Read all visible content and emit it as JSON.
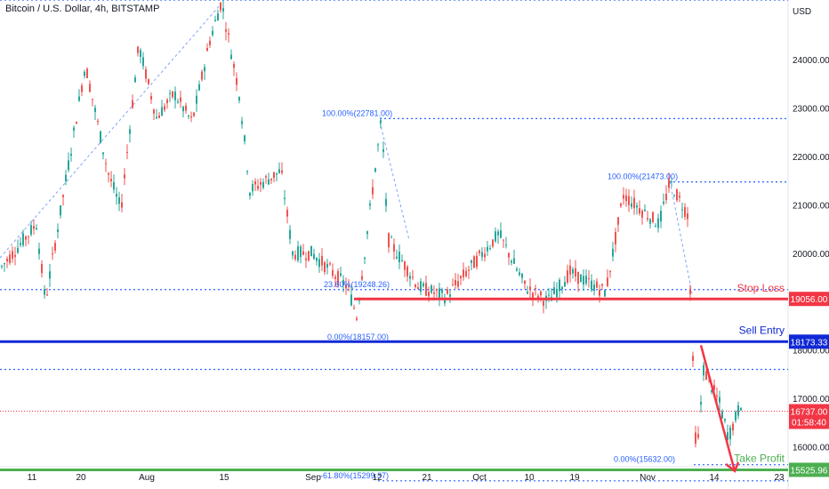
{
  "header": {
    "title": "Bitcoin / U.S. Dollar, 4h, BITSTAMP",
    "currency": "USD"
  },
  "chart_data": {
    "type": "candlestick",
    "title": "Bitcoin / U.S. Dollar, 4h, BITSTAMP",
    "ylabel": "USD",
    "ylim": [
      15130,
      25230
    ],
    "y_ticks": [
      16000,
      17000,
      18000,
      19000,
      20000,
      21000,
      22000,
      23000,
      24000
    ],
    "x_ticks": [
      "11",
      "20",
      "Aug",
      "15",
      "Sep",
      "12",
      "21",
      "Oct",
      "10",
      "19",
      "Nov",
      "14",
      "23"
    ],
    "grid": false,
    "horizontal_levels": [
      {
        "name": "Stop Loss",
        "value": 19056.0,
        "label_text": "Stop Loss",
        "price_tag": "19056.00",
        "color": "#f23645"
      },
      {
        "name": "Sell Entry",
        "value": 18173.33,
        "label_text": "Sell Entry",
        "price_tag": "18173.33",
        "color": "#1029d6"
      },
      {
        "name": "Take Profit",
        "value": 15525.96,
        "label_text": "Take Profit",
        "price_tag": "15525.96",
        "color": "#4caf50"
      },
      {
        "name": "Current Price",
        "value": 16737.0,
        "price_tag": "16737.00",
        "countdown": "01:58:40",
        "color": "#f23645"
      }
    ],
    "dotted_levels": [
      25230,
      22781,
      21473,
      19248,
      17600,
      15632,
      15299
    ],
    "fib_labels": [
      {
        "text": "100.00%(22781.00)",
        "value": 22781
      },
      {
        "text": "23.60%(19248.26)",
        "value": 19248
      },
      {
        "text": "0.00%(18157.00)",
        "value": 18157
      },
      {
        "text": "100.00%(21473.00)",
        "value": 21473
      },
      {
        "text": "0.00%(15632.00)",
        "value": 15632
      },
      {
        "text": "-61.80%(15299.37)",
        "value": 15299
      }
    ],
    "accent_colors": {
      "up": "#26a69a",
      "down": "#ef5350",
      "fib": "#2962ff",
      "axis_text": "#131722"
    }
  }
}
